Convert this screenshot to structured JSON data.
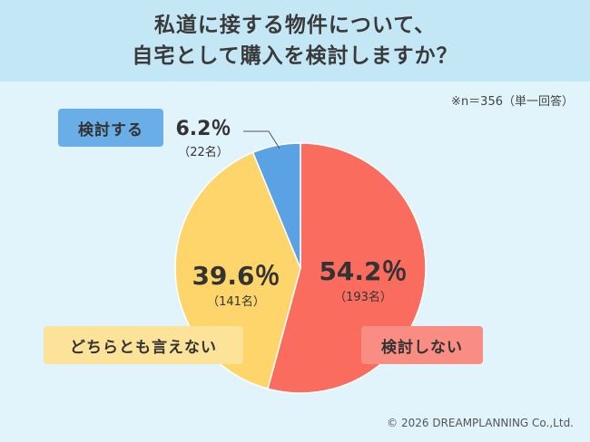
{
  "header": {
    "title_line1": "私道に接する物件について、",
    "title_line2": "自宅として購入を検討しますか？"
  },
  "sample_note": "※n＝356（単一回答）",
  "copyright": "© 2026 DREAMPLANNING Co.,Ltd.",
  "colors": {
    "header_bg": "#c4e7f6",
    "page_bg": "#e2f4fb",
    "no_consider": "#f96c5e",
    "undecided": "#fdd56a",
    "consider": "#5aa2e4"
  },
  "chart_data": {
    "type": "pie",
    "slices": [
      {
        "label": "検討しない",
        "percent": 54.2,
        "percent_text": "54.2％",
        "count_text": "（193名）",
        "color": "#f96c5e"
      },
      {
        "label": "どちらとも言えない",
        "percent": 39.6,
        "percent_text": "39.6％",
        "count_text": "（141名）",
        "color": "#fdd56a"
      },
      {
        "label": "検討する",
        "percent": 6.2,
        "percent_text": "6.2％",
        "count_text": "（22名）",
        "color": "#5aa2e4"
      }
    ],
    "start_angle": "12 o'clock",
    "direction": "clockwise"
  }
}
